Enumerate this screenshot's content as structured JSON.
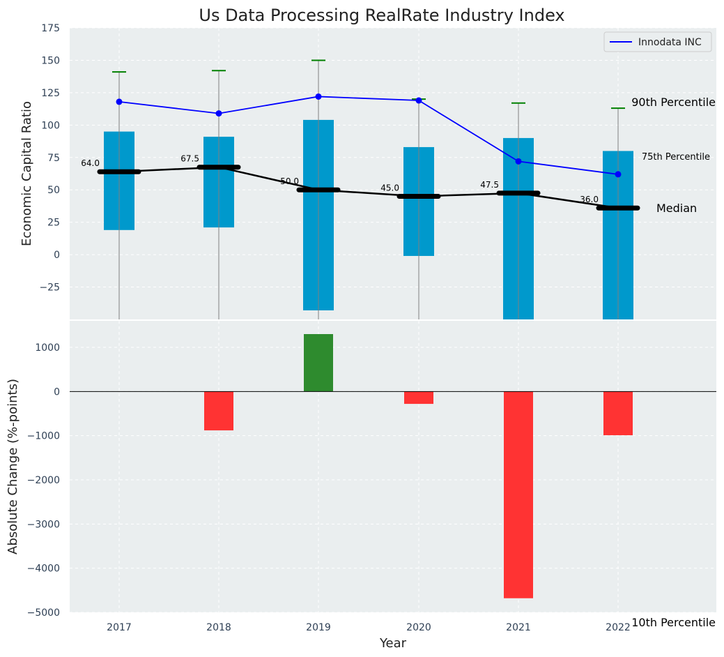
{
  "chart_data": {
    "title": "Us Data Processing RealRate Industry Index",
    "xlabel": "Year",
    "colors": {
      "box": "#0099CC",
      "company_line": "#0000FF",
      "median_line": "#000000",
      "whisker_cap": "#008000",
      "whisker": "#808080",
      "positive": "#2E8B2E",
      "negative": "#FF3333",
      "panel_bg": "#EAEEEF",
      "p75_text": "#0099BB"
    },
    "top": {
      "type": "box",
      "ylabel": "Economic Capital Ratio",
      "ylim": [
        -50,
        175
      ],
      "yticks": [
        -25,
        0,
        25,
        50,
        75,
        100,
        125,
        150,
        175
      ],
      "years": [
        "2017",
        "2018",
        "2019",
        "2020",
        "2021",
        "2022"
      ],
      "p25": [
        19,
        21,
        -43,
        -1,
        -50,
        -50
      ],
      "p75": [
        95,
        91,
        104,
        83,
        90,
        80
      ],
      "p90": [
        141,
        142,
        150,
        120,
        117,
        113
      ],
      "median": [
        64.0,
        67.5,
        50.0,
        45.0,
        47.5,
        36.0
      ],
      "median_labels": [
        "64.0",
        "67.5",
        "50.0",
        "45.0",
        "47.5",
        "36.0"
      ],
      "company_name": "Innodata INC",
      "company": [
        118,
        109,
        122,
        119,
        72,
        62
      ],
      "annotations": {
        "p90": "90th Percentile",
        "p75": "75th Percentile",
        "median": "Median",
        "p10": "10th Percentile"
      }
    },
    "bottom": {
      "type": "bar",
      "ylabel": "Absolute Change (%-points)",
      "ylim": [
        -5000,
        1600
      ],
      "yticks": [
        -5000,
        -4000,
        -3000,
        -2000,
        -1000,
        0,
        1000
      ],
      "values": [
        0,
        -880,
        1300,
        -280,
        -4680,
        -990
      ]
    }
  }
}
